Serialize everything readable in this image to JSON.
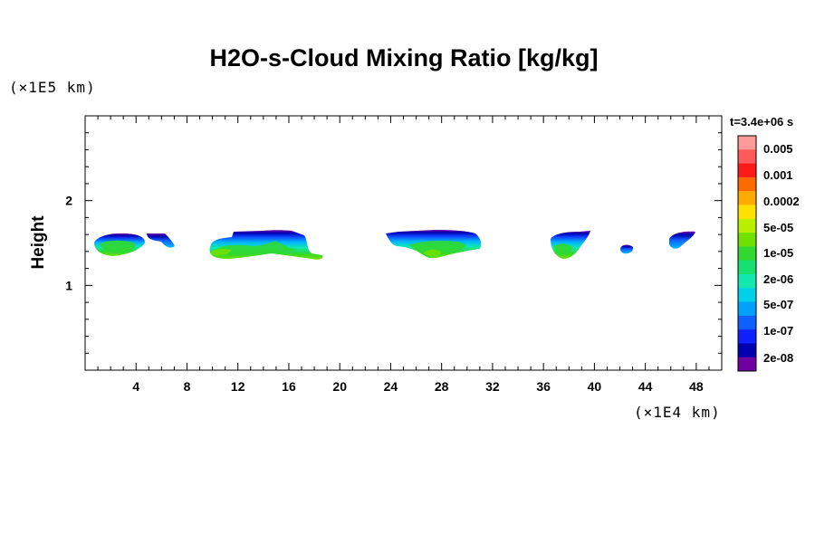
{
  "chart_data": {
    "type": "contour",
    "title": "H2O-s-Cloud Mixing Ratio [kg/kg]",
    "ylabel": "Height",
    "xlabel": "",
    "x_unit": "(×1E4 km)",
    "y_unit": "(×1E5 km)",
    "time_label": "t=3.4e+06 s",
    "xlim": [
      0,
      50
    ],
    "ylim": [
      0,
      3
    ],
    "x_ticks": [
      4,
      8,
      12,
      16,
      20,
      24,
      28,
      32,
      36,
      40,
      44,
      48
    ],
    "x_tick_labels": [
      "4",
      "8",
      "12",
      "16",
      "20",
      "24",
      "28",
      "32",
      "36",
      "40",
      "44",
      "48"
    ],
    "y_ticks": [
      1,
      2
    ],
    "y_tick_labels": [
      "1",
      "2"
    ],
    "colorbar": {
      "labels": [
        "0.005",
        "0.001",
        "0.0002",
        "5e-05",
        "1e-05",
        "2e-06",
        "5e-07",
        "1e-07",
        "2e-08"
      ],
      "colors": [
        "#ff9a9a",
        "#ff5a5a",
        "#ff1a1a",
        "#ff6a00",
        "#ffaa00",
        "#ffe000",
        "#b8f000",
        "#70e000",
        "#30d830",
        "#18e070",
        "#10e8b0",
        "#00d0e8",
        "#00a0ff",
        "#1060ff",
        "#1020ff",
        "#0000b0",
        "#7000a0"
      ]
    },
    "cloud_regions": [
      {
        "x_center": 3.0,
        "x_halfwidth": 3.8,
        "y_top": 1.58,
        "y_bottom": 1.33
      },
      {
        "x_center": 6.5,
        "x_halfwidth": 1.5,
        "y_top": 1.6,
        "y_bottom": 1.43
      },
      {
        "x_center": 14.5,
        "x_halfwidth": 9.0,
        "y_top": 1.62,
        "y_bottom": 1.3
      },
      {
        "x_center": 28.5,
        "x_halfwidth": 7.5,
        "y_top": 1.63,
        "y_bottom": 1.32
      },
      {
        "x_center": 38.7,
        "x_halfwidth": 3.5,
        "y_top": 1.62,
        "y_bottom": 1.33
      },
      {
        "x_center": 43.5,
        "x_halfwidth": 0.8,
        "y_top": 1.46,
        "y_bottom": 1.38
      },
      {
        "x_center": 47.8,
        "x_halfwidth": 2.5,
        "y_top": 1.63,
        "y_bottom": 1.43
      }
    ]
  }
}
